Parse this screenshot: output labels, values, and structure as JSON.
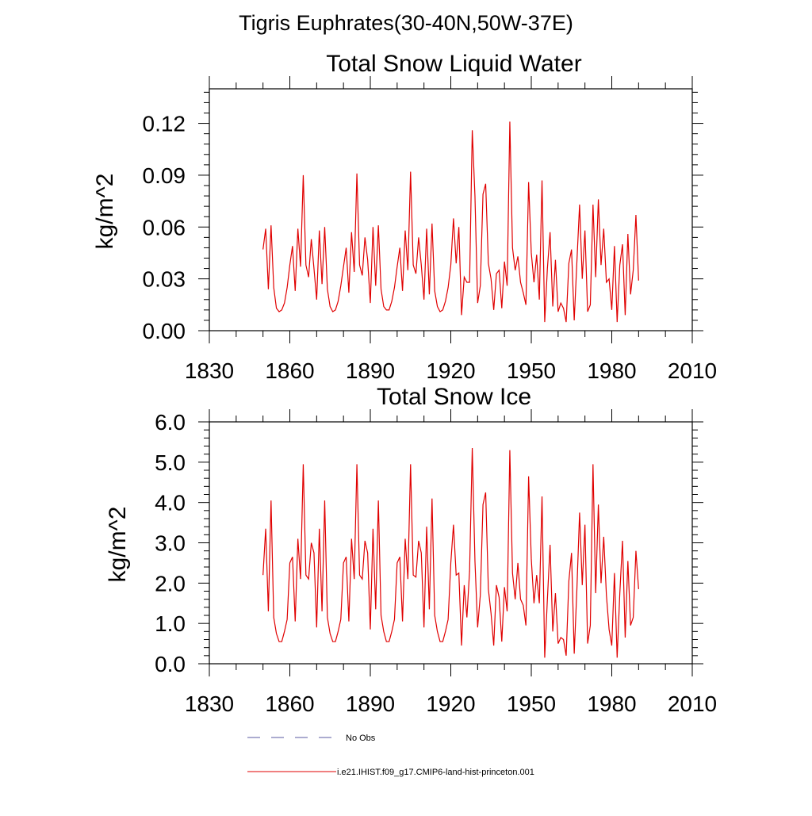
{
  "main_title": "Tigris Euphrates(30-40N,50W-37E)",
  "legend": {
    "entries": [
      {
        "label": "No Obs",
        "style": "dashed",
        "color": "#5a5aa0"
      },
      {
        "label": "i.e21.IHIST.f09_g17.CMIP6-land-hist-princeton.001",
        "style": "solid",
        "color": "#e00000"
      }
    ]
  },
  "chart_data": [
    {
      "type": "line",
      "title": "Total Snow Liquid Water",
      "xlabel": "",
      "ylabel": "kg/m^2",
      "xlim": [
        1830,
        2010
      ],
      "ylim": [
        0.0,
        0.14
      ],
      "xticks": [
        1830,
        1860,
        1890,
        1920,
        1950,
        1980,
        2010
      ],
      "xtick_labels": [
        "1830",
        "1860",
        "1890",
        "1920",
        "1950",
        "1980",
        "2010"
      ],
      "yticks": [
        0.0,
        0.03,
        0.06,
        0.09,
        0.12
      ],
      "ytick_labels": [
        "0.00",
        "0.03",
        "0.06",
        "0.09",
        "0.12"
      ],
      "grid": false,
      "series": [
        {
          "color": "#e00000",
          "x_start": 1850,
          "x_step": 1,
          "values": [
            0.047,
            0.059,
            0.024,
            0.061,
            0.025,
            0.013,
            0.011,
            0.012,
            0.016,
            0.025,
            0.038,
            0.049,
            0.023,
            0.059,
            0.037,
            0.09,
            0.038,
            0.031,
            0.053,
            0.036,
            0.018,
            0.058,
            0.027,
            0.06,
            0.024,
            0.014,
            0.011,
            0.012,
            0.017,
            0.026,
            0.037,
            0.048,
            0.022,
            0.057,
            0.034,
            0.091,
            0.038,
            0.032,
            0.054,
            0.041,
            0.016,
            0.06,
            0.026,
            0.061,
            0.024,
            0.014,
            0.012,
            0.012,
            0.017,
            0.025,
            0.037,
            0.048,
            0.023,
            0.058,
            0.035,
            0.092,
            0.038,
            0.033,
            0.054,
            0.038,
            0.018,
            0.059,
            0.021,
            0.062,
            0.023,
            0.014,
            0.011,
            0.012,
            0.017,
            0.025,
            0.038,
            0.065,
            0.039,
            0.06,
            0.009,
            0.031,
            0.028,
            0.028,
            0.116,
            0.078,
            0.016,
            0.026,
            0.079,
            0.085,
            0.039,
            0.03,
            0.012,
            0.033,
            0.035,
            0.013,
            0.04,
            0.026,
            0.121,
            0.048,
            0.035,
            0.043,
            0.028,
            0.022,
            0.015,
            0.086,
            0.045,
            0.028,
            0.044,
            0.018,
            0.087,
            0.005,
            0.036,
            0.057,
            0.014,
            0.041,
            0.011,
            0.016,
            0.013,
            0.005,
            0.039,
            0.047,
            0.006,
            0.04,
            0.073,
            0.03,
            0.058,
            0.011,
            0.015,
            0.073,
            0.031,
            0.076,
            0.038,
            0.059,
            0.028,
            0.03,
            0.012,
            0.049,
            0.005,
            0.038,
            0.05,
            0.009,
            0.056,
            0.021,
            0.035,
            0.067,
            0.029
          ]
        }
      ]
    },
    {
      "type": "line",
      "title": "Total Snow Ice",
      "xlabel": "",
      "ylabel": "kg/m^2",
      "xlim": [
        1830,
        2010
      ],
      "ylim": [
        0.0,
        6.0
      ],
      "xticks": [
        1830,
        1860,
        1890,
        1920,
        1950,
        1980,
        2010
      ],
      "xtick_labels": [
        "1830",
        "1860",
        "1890",
        "1920",
        "1950",
        "1980",
        "2010"
      ],
      "yticks": [
        0.0,
        1.0,
        2.0,
        3.0,
        4.0,
        5.0,
        6.0
      ],
      "ytick_labels": [
        "0.0",
        "1.0",
        "2.0",
        "3.0",
        "4.0",
        "5.0",
        "6.0"
      ],
      "grid": false,
      "series": [
        {
          "color": "#e00000",
          "x_start": 1850,
          "x_step": 1,
          "values": [
            2.2,
            3.35,
            1.3,
            4.05,
            1.15,
            0.75,
            0.55,
            0.55,
            0.8,
            1.1,
            2.5,
            2.65,
            1.05,
            3.1,
            2.1,
            4.95,
            2.2,
            2.1,
            3.0,
            2.75,
            0.9,
            3.35,
            1.3,
            4.05,
            1.15,
            0.75,
            0.55,
            0.55,
            0.8,
            1.1,
            2.5,
            2.65,
            1.05,
            3.1,
            2.1,
            4.95,
            2.2,
            2.1,
            3.05,
            2.75,
            0.85,
            3.35,
            1.35,
            4.05,
            1.2,
            0.8,
            0.55,
            0.55,
            0.8,
            1.1,
            2.5,
            2.65,
            1.05,
            3.1,
            2.1,
            4.95,
            2.2,
            2.15,
            3.05,
            2.75,
            0.9,
            3.4,
            1.35,
            4.1,
            1.2,
            0.8,
            0.55,
            0.55,
            0.8,
            1.1,
            2.5,
            3.45,
            2.2,
            2.25,
            0.45,
            1.95,
            1.15,
            2.3,
            5.35,
            2.55,
            0.9,
            1.7,
            3.95,
            4.25,
            1.85,
            1.25,
            0.45,
            1.95,
            1.65,
            0.55,
            1.9,
            1.3,
            5.3,
            2.25,
            1.6,
            2.5,
            1.6,
            1.45,
            0.95,
            4.65,
            2.6,
            1.5,
            2.2,
            1.5,
            4.15,
            0.15,
            1.6,
            2.95,
            0.8,
            1.75,
            0.5,
            0.65,
            0.6,
            0.2,
            2.05,
            2.75,
            0.25,
            1.85,
            3.75,
            1.95,
            3.45,
            0.5,
            0.95,
            4.95,
            1.75,
            3.95,
            2.0,
            3.15,
            1.7,
            0.85,
            0.45,
            2.25,
            0.15,
            1.75,
            3.05,
            0.65,
            2.55,
            0.95,
            1.15,
            2.8,
            1.85
          ]
        }
      ]
    }
  ]
}
